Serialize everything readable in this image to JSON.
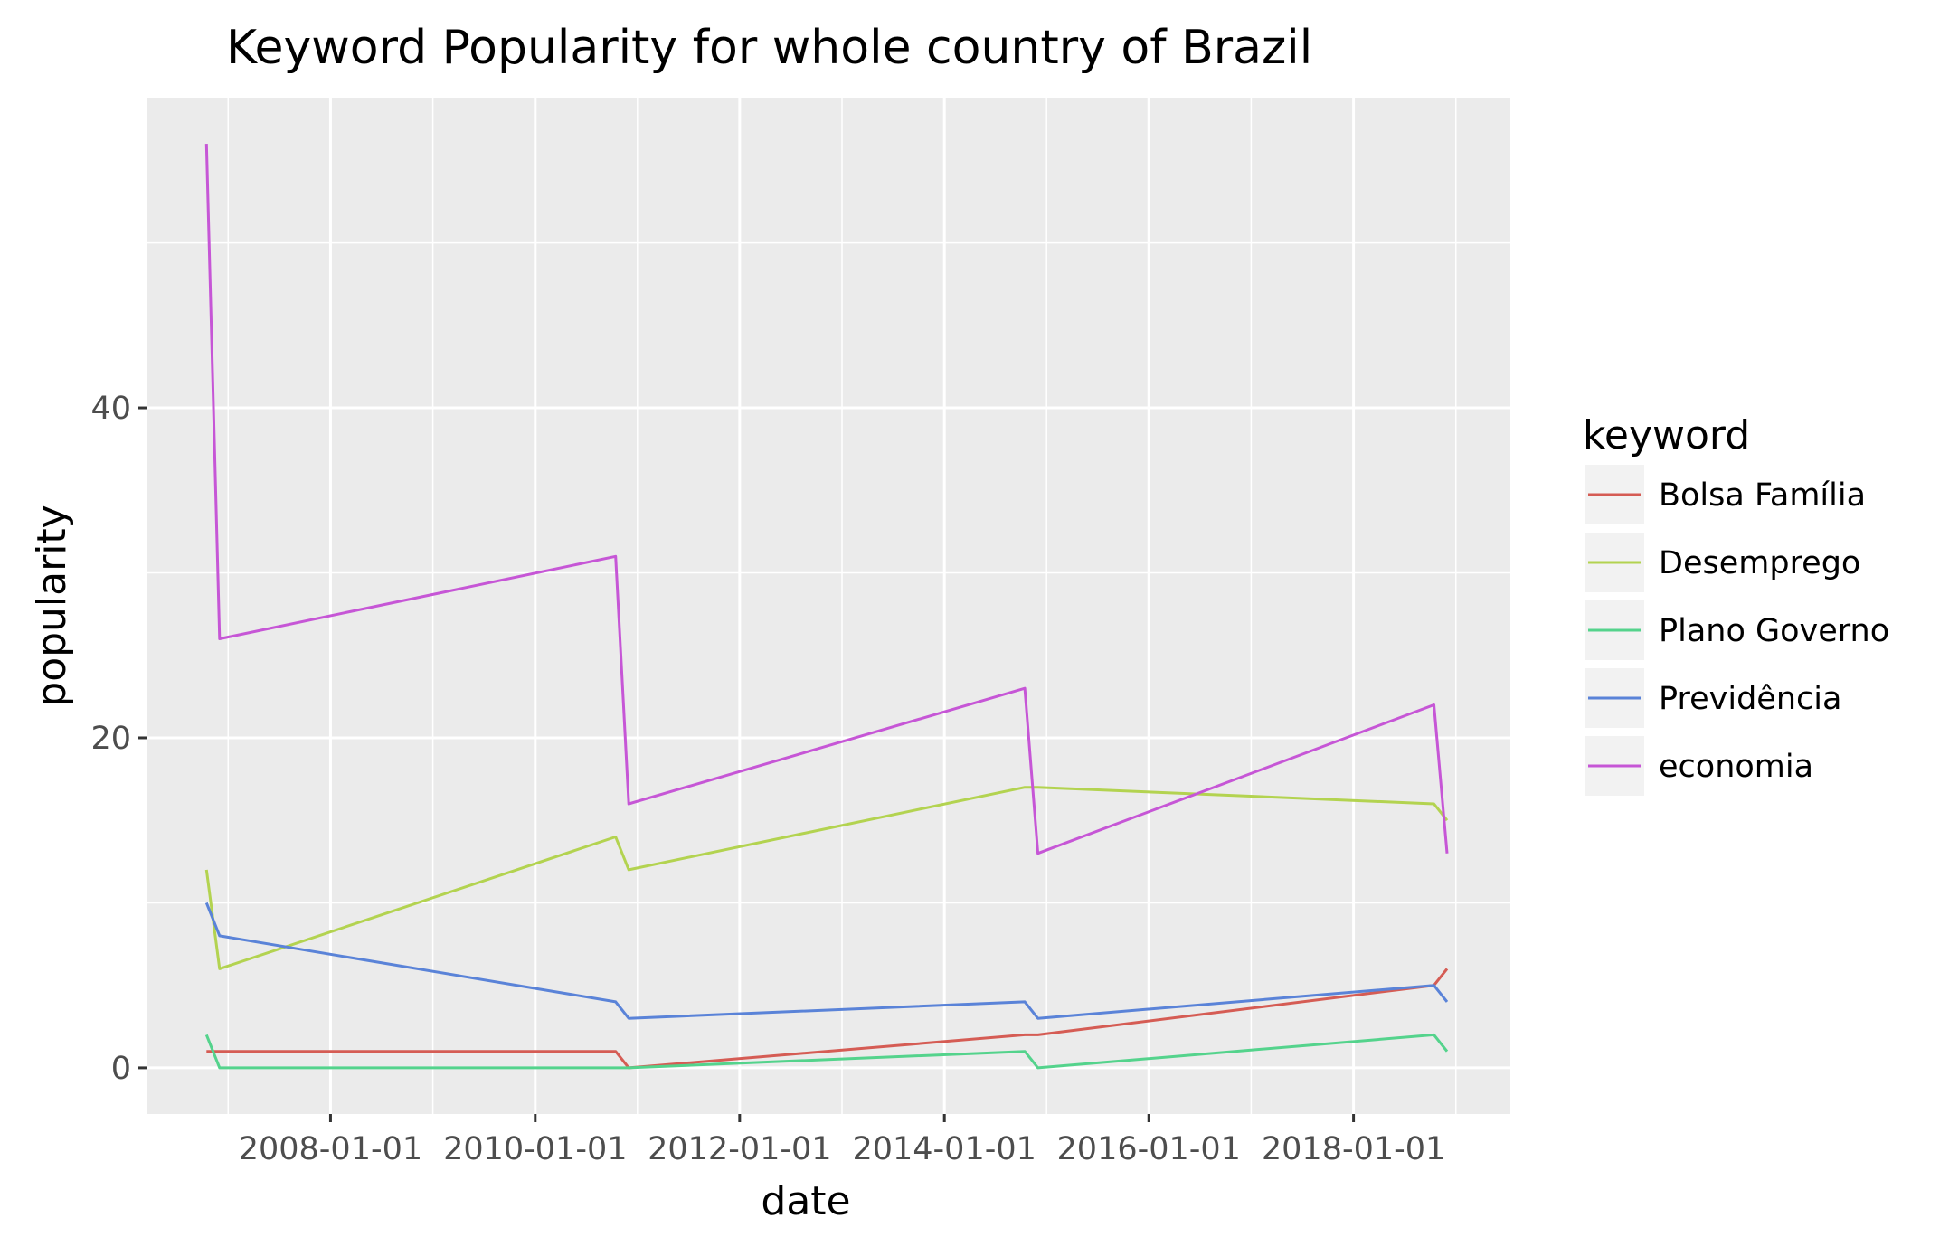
{
  "chart_data": {
    "type": "line",
    "title": "Keyword Popularity for whole country of Brazil",
    "xlabel": "date",
    "ylabel": "popularity",
    "x": [
      "2006-10-15",
      "2006-12-01",
      "2010-10-15",
      "2010-12-01",
      "2014-10-15",
      "2014-12-01",
      "2018-10-15",
      "2018-12-01"
    ],
    "x_ticks": [
      "2008-01-01",
      "2010-01-01",
      "2012-01-01",
      "2014-01-01",
      "2016-01-01",
      "2018-01-01"
    ],
    "xlim": [
      "2006-03-15",
      "2019-07-15"
    ],
    "y_ticks": [
      0,
      20,
      40
    ],
    "ylim": [
      -2.8,
      58.8
    ],
    "grid": true,
    "legend_title": "keyword",
    "legend_position": "right",
    "series": [
      {
        "name": "Bolsa Família",
        "color": "#d55c54",
        "values": [
          1,
          1,
          1,
          0,
          2,
          2,
          5,
          6
        ]
      },
      {
        "name": "Desemprego",
        "color": "#b3d350",
        "values": [
          12,
          6,
          14,
          12,
          17,
          17,
          16,
          15
        ]
      },
      {
        "name": "Plano Governo",
        "color": "#54d38c",
        "values": [
          2,
          0,
          0,
          0,
          1,
          0,
          2,
          1
        ]
      },
      {
        "name": "Previdência",
        "color": "#5a83d8",
        "values": [
          10,
          8,
          4,
          3,
          4,
          3,
          5,
          4
        ]
      },
      {
        "name": "economia",
        "color": "#c656d6",
        "values": [
          56,
          26,
          31,
          16,
          23,
          13,
          22,
          13
        ]
      }
    ]
  }
}
